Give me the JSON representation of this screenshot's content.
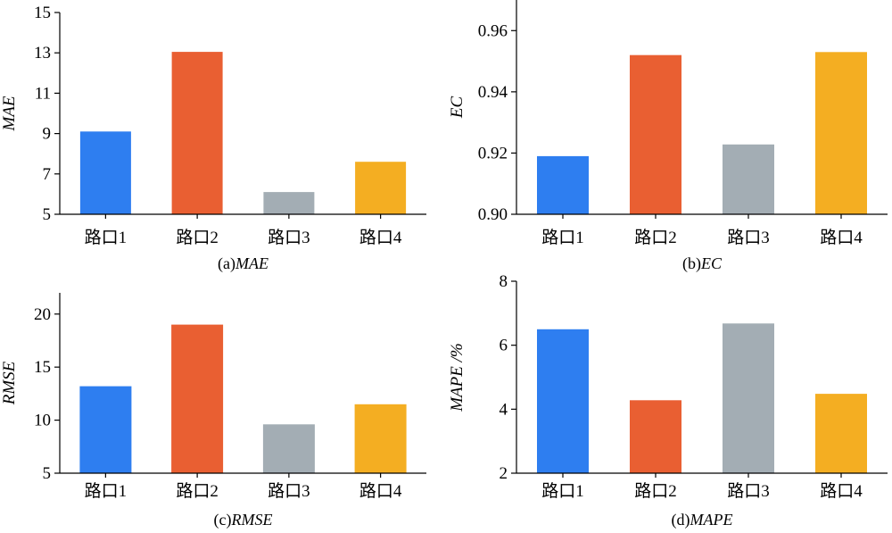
{
  "chart_data": [
    {
      "type": "bar",
      "categories": [
        "路口1",
        "路口2",
        "路口3",
        "路口4"
      ],
      "values": [
        9.1,
        13.05,
        6.1,
        7.6
      ],
      "ylabel": "MAE",
      "ylim": [
        5,
        15
      ],
      "yticks": [
        5,
        7,
        9,
        11,
        13,
        15
      ],
      "ytick_labels": [
        "5",
        "7",
        "9",
        "11",
        "13",
        "15"
      ],
      "caption_prefix": "(a)",
      "caption_metric": "MAE",
      "grid": false,
      "legend": "none"
    },
    {
      "type": "bar",
      "categories": [
        "路口1",
        "路口2",
        "路口3",
        "路口4"
      ],
      "values": [
        0.919,
        0.952,
        0.9228,
        0.953
      ],
      "ylabel": "EC",
      "ylim": [
        0.9,
        0.97
      ],
      "yticks": [
        0.9,
        0.92,
        0.94,
        0.96
      ],
      "ytick_labels": [
        "0.90",
        "0.92",
        "0.94",
        "0.96"
      ],
      "caption_prefix": "(b)",
      "caption_metric": "EC",
      "grid": false,
      "legend": "none"
    },
    {
      "type": "bar",
      "categories": [
        "路口1",
        "路口2",
        "路口3",
        "路口4"
      ],
      "values": [
        13.2,
        19.0,
        9.6,
        11.5
      ],
      "ylabel": "RMSE",
      "ylim": [
        5,
        22
      ],
      "yticks": [
        5,
        10,
        15,
        20
      ],
      "ytick_labels": [
        "5",
        "10",
        "15",
        "20"
      ],
      "caption_prefix": "(c)",
      "caption_metric": "RMSE",
      "grid": false,
      "legend": "none"
    },
    {
      "type": "bar",
      "categories": [
        "路口1",
        "路口2",
        "路口3",
        "路口4"
      ],
      "values": [
        6.5,
        4.28,
        6.68,
        4.48
      ],
      "ylabel": "MAPE /%",
      "ylim": [
        2,
        8
      ],
      "yticks": [
        2,
        4,
        6,
        8
      ],
      "ytick_labels": [
        "2",
        "4",
        "6",
        "8"
      ],
      "caption_prefix": "(d)",
      "caption_metric": "MAPE",
      "grid": false,
      "legend": "none"
    }
  ],
  "colors": {
    "bars": [
      "#2e7ef0",
      "#e95f32",
      "#a3adb4",
      "#f4ae22"
    ],
    "axis": "#000000"
  }
}
